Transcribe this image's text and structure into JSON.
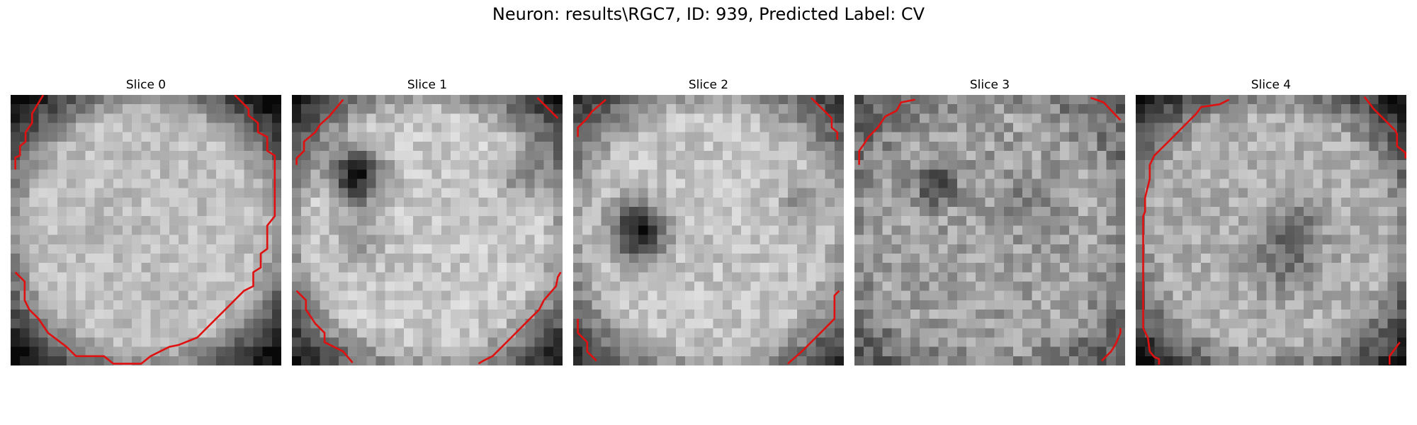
{
  "figure": {
    "title": "Neuron: results\\RGC7, ID: 939, Predicted Label: CV"
  },
  "panels": [
    {
      "title": "Slice 0"
    },
    {
      "title": "Slice 1"
    },
    {
      "title": "Slice 2"
    },
    {
      "title": "Slice 3"
    },
    {
      "title": "Slice 4"
    }
  ],
  "colors": {
    "contour": "#e01010"
  }
}
